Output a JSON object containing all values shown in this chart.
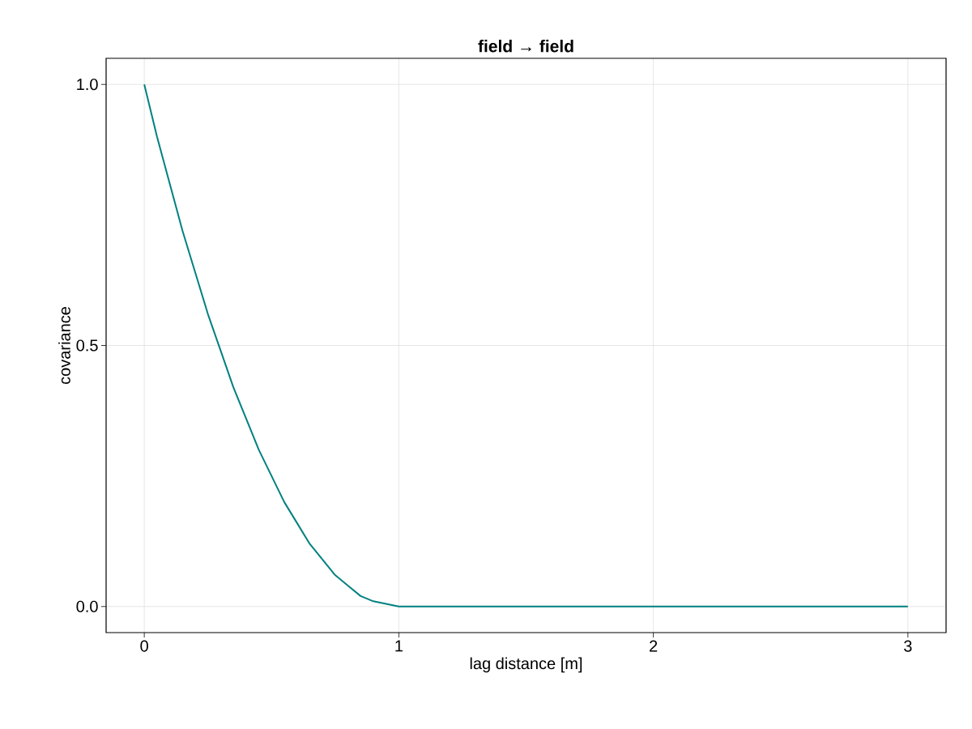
{
  "chart_data": {
    "type": "line",
    "title": "field → field",
    "xlabel": "lag distance [m]",
    "ylabel": "covariance",
    "x": [
      0,
      0.05,
      0.1,
      0.15,
      0.2,
      0.25,
      0.3,
      0.35,
      0.4,
      0.45,
      0.5,
      0.55,
      0.6,
      0.65,
      0.7,
      0.75,
      0.8,
      0.85,
      0.9,
      0.95,
      1.0,
      1.5,
      2.0,
      2.5,
      3.0
    ],
    "series": [
      {
        "color": "#008080",
        "values": [
          1.0,
          0.9,
          0.81,
          0.72,
          0.64,
          0.56,
          0.49,
          0.42,
          0.36,
          0.3,
          0.25,
          0.2,
          0.16,
          0.12,
          0.09,
          0.06,
          0.04,
          0.02,
          0.01,
          0.005,
          0,
          0,
          0,
          0,
          0
        ]
      }
    ],
    "xlim": [
      -0.15,
      3.15
    ],
    "ylim": [
      -0.05,
      1.05
    ],
    "xticks": [
      0,
      1,
      2,
      3
    ],
    "yticks": [
      {
        "value": 0,
        "label": "0.0"
      },
      {
        "value": 0.5,
        "label": "0.5"
      },
      {
        "value": 1,
        "label": "1.0"
      }
    ],
    "grid": true,
    "marker": "none",
    "line_style": "solid"
  }
}
